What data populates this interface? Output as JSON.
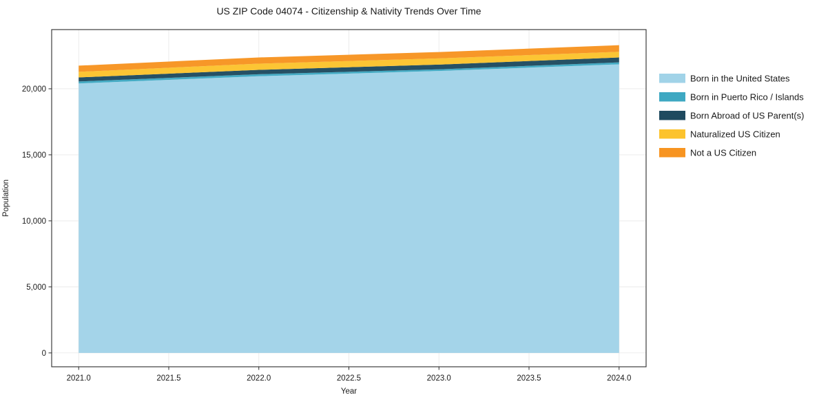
{
  "figure": {
    "background": "#ffffff",
    "text_color": "#1a1a1a",
    "grid_color": "#e9e9e9",
    "spine_color": "#2b2b2b"
  },
  "chart_data": {
    "type": "area",
    "stacked": true,
    "title": "US ZIP Code 04074 - Citizenship & Nativity Trends Over Time",
    "xlabel": "Year",
    "ylabel": "Population",
    "x": [
      2021,
      2022,
      2023,
      2024
    ],
    "series": [
      {
        "name": "Born in the United States",
        "color": "#a1d3e8",
        "values": [
          20400,
          20950,
          21350,
          21850
        ]
      },
      {
        "name": "Born in Puerto Rico / Islands",
        "color": "#3ea8c2",
        "values": [
          150,
          150,
          120,
          150
        ]
      },
      {
        "name": "Born Abroad of US Parent(s)",
        "color": "#1f4a5f",
        "values": [
          310,
          330,
          360,
          370
        ]
      },
      {
        "name": "Naturalized US Citizen",
        "color": "#fcc32d",
        "values": [
          420,
          470,
          470,
          430
        ]
      },
      {
        "name": "Not a US Citizen",
        "color": "#f79421",
        "values": [
          470,
          470,
          480,
          500
        ]
      }
    ],
    "xlim": [
      2020.85,
      2024.15
    ],
    "ylim": [
      -1050,
      24480
    ],
    "xticks": [
      2021.0,
      2021.5,
      2022.0,
      2022.5,
      2023.0,
      2023.5,
      2024.0
    ],
    "yticks": [
      0,
      5000,
      10000,
      15000,
      20000
    ],
    "grid": true,
    "legend_position": "right-outside"
  }
}
